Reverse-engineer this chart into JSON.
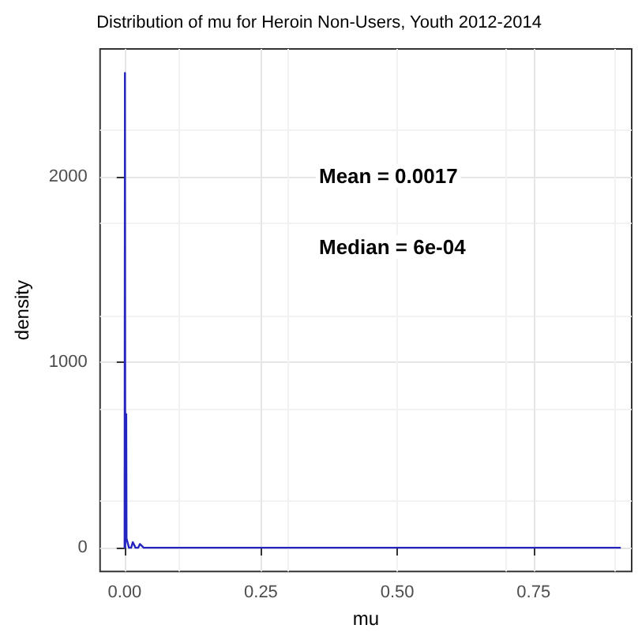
{
  "chart_data": {
    "type": "line",
    "title": "Distribution of mu for Heroin Non-Users, Youth 2012-2014",
    "xlabel": "mu",
    "ylabel": "density",
    "series": [
      {
        "color": "#2424c0",
        "x": [
          0,
          0.0006,
          0.0012,
          0.003,
          0.0035,
          0.005,
          0.008,
          0.012,
          0.015,
          0.02,
          0.025,
          0.028,
          0.035,
          0.1,
          0.3,
          0.5,
          0.7,
          0.91
        ],
        "values": [
          0,
          2560,
          0,
          720,
          50,
          50,
          0,
          0,
          30,
          0,
          0,
          20,
          0,
          0,
          0,
          0,
          0,
          0
        ]
      }
    ],
    "xlim": [
      -0.045,
      0.93
    ],
    "xticks": [
      {
        "value": 0,
        "label": "0.00"
      },
      0.25,
      {
        "value": 0.5,
        "label": "0.50"
      },
      0.75
    ],
    "ylim": [
      -128,
      2690
    ],
    "yticks": [
      0,
      1000,
      2000
    ],
    "grid": true,
    "marker": "none",
    "line_style": "solid",
    "annotations": [
      "Mean = 0.0017",
      "Median = 6e-04"
    ]
  }
}
